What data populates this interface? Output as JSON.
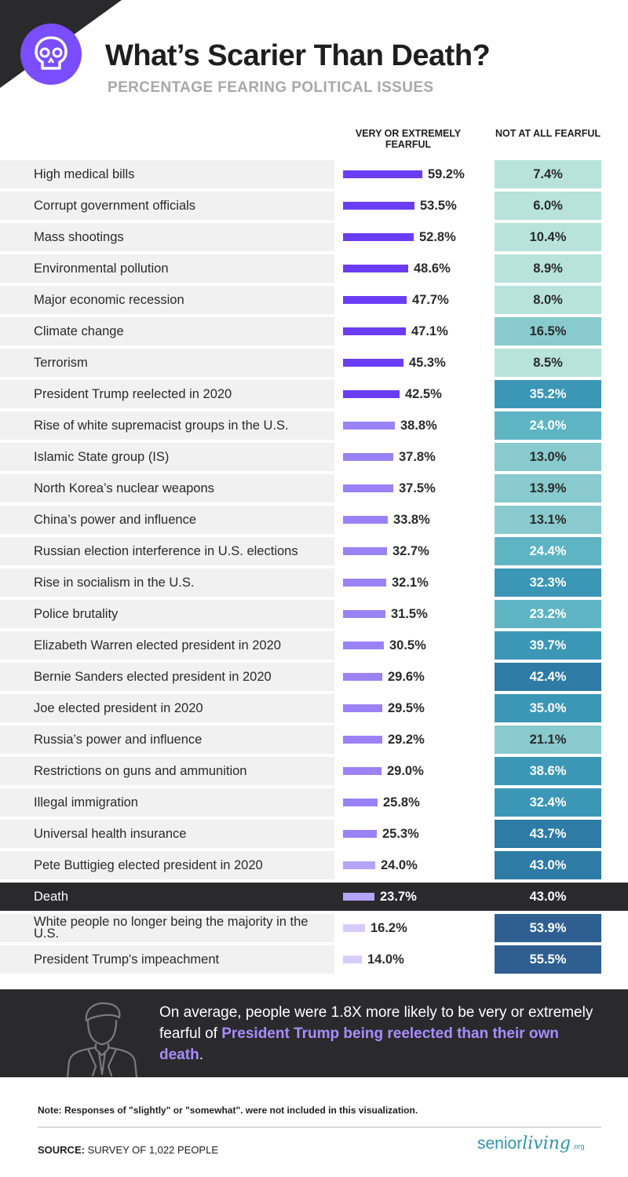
{
  "header": {
    "title": "What’s Scarier Than Death?",
    "subtitle": "PERCENTAGE FEARING POLITICAL ISSUES",
    "icon": "skull-icon",
    "accent_color": "#7a4dff"
  },
  "columns": {
    "fearful": "VERY OR EXTREMELY FEARFUL",
    "not_fearful": "NOT AT ALL FEARFUL"
  },
  "chart_data": {
    "type": "table",
    "columns": [
      "Issue",
      "VERY OR EXTREMELY FEARFUL",
      "NOT AT ALL FEARFUL"
    ],
    "bar_column": "VERY OR EXTREMELY FEARFUL",
    "highlight_row": "Death",
    "rows": [
      {
        "issue": "High medical bills",
        "fearful": 59.2,
        "fearful_label": "59.2%",
        "not_fearful": 7.4,
        "not_fearful_label": "7.4%"
      },
      {
        "issue": "Corrupt government officials",
        "fearful": 53.5,
        "fearful_label": "53.5%",
        "not_fearful": 6.0,
        "not_fearful_label": "6.0%"
      },
      {
        "issue": "Mass shootings",
        "fearful": 52.8,
        "fearful_label": "52.8%",
        "not_fearful": 10.4,
        "not_fearful_label": "10.4%"
      },
      {
        "issue": "Environmental pollution",
        "fearful": 48.6,
        "fearful_label": "48.6%",
        "not_fearful": 8.9,
        "not_fearful_label": "8.9%"
      },
      {
        "issue": "Major economic recession",
        "fearful": 47.7,
        "fearful_label": "47.7%",
        "not_fearful": 8.0,
        "not_fearful_label": "8.0%"
      },
      {
        "issue": "Climate change",
        "fearful": 47.1,
        "fearful_label": "47.1%",
        "not_fearful": 16.5,
        "not_fearful_label": "16.5%"
      },
      {
        "issue": "Terrorism",
        "fearful": 45.3,
        "fearful_label": "45.3%",
        "not_fearful": 8.5,
        "not_fearful_label": "8.5%"
      },
      {
        "issue": "President Trump reelected in 2020",
        "fearful": 42.5,
        "fearful_label": "42.5%",
        "not_fearful": 35.2,
        "not_fearful_label": "35.2%"
      },
      {
        "issue": "Rise of white supremacist groups in the U.S.",
        "fearful": 38.8,
        "fearful_label": "38.8%",
        "not_fearful": 24.0,
        "not_fearful_label": "24.0%"
      },
      {
        "issue": "Islamic State group (IS)",
        "fearful": 37.8,
        "fearful_label": "37.8%",
        "not_fearful": 13.0,
        "not_fearful_label": "13.0%"
      },
      {
        "issue": "North Korea’s nuclear weapons",
        "fearful": 37.5,
        "fearful_label": "37.5%",
        "not_fearful": 13.9,
        "not_fearful_label": "13.9%"
      },
      {
        "issue": "China’s power and influence",
        "fearful": 33.8,
        "fearful_label": "33.8%",
        "not_fearful": 13.1,
        "not_fearful_label": "13.1%"
      },
      {
        "issue": "Russian election interference in U.S. elections",
        "fearful": 32.7,
        "fearful_label": "32.7%",
        "not_fearful": 24.4,
        "not_fearful_label": "24.4%"
      },
      {
        "issue": "Rise in socialism in the U.S.",
        "fearful": 32.1,
        "fearful_label": "32.1%",
        "not_fearful": 32.3,
        "not_fearful_label": "32.3%"
      },
      {
        "issue": "Police brutality",
        "fearful": 31.5,
        "fearful_label": "31.5%",
        "not_fearful": 23.2,
        "not_fearful_label": "23.2%"
      },
      {
        "issue": "Elizabeth Warren elected president in 2020",
        "fearful": 30.5,
        "fearful_label": "30.5%",
        "not_fearful": 39.7,
        "not_fearful_label": "39.7%"
      },
      {
        "issue": "Bernie Sanders elected president in 2020",
        "fearful": 29.6,
        "fearful_label": "29.6%",
        "not_fearful": 42.4,
        "not_fearful_label": "42.4%"
      },
      {
        "issue": "Joe elected president in 2020",
        "fearful": 29.5,
        "fearful_label": "29.5%",
        "not_fearful": 35.0,
        "not_fearful_label": "35.0%"
      },
      {
        "issue": "Russia’s power and influence",
        "fearful": 29.2,
        "fearful_label": "29.2%",
        "not_fearful": 21.1,
        "not_fearful_label": "21.1%"
      },
      {
        "issue": "Restrictions on guns and ammunition",
        "fearful": 29.0,
        "fearful_label": "29.0%",
        "not_fearful": 38.6,
        "not_fearful_label": "38.6%"
      },
      {
        "issue": "Illegal immigration",
        "fearful": 25.8,
        "fearful_label": "25.8%",
        "not_fearful": 32.4,
        "not_fearful_label": "32.4%"
      },
      {
        "issue": "Universal health insurance",
        "fearful": 25.3,
        "fearful_label": "25.3%",
        "not_fearful": 43.7,
        "not_fearful_label": "43.7%"
      },
      {
        "issue": "Pete Buttigieg elected president in 2020",
        "fearful": 24.0,
        "fearful_label": "24.0%",
        "not_fearful": 43.0,
        "not_fearful_label": "43.0%"
      },
      {
        "issue": "Death",
        "fearful": 23.7,
        "fearful_label": "23.7%",
        "not_fearful": 43.0,
        "not_fearful_label": "43.0%"
      },
      {
        "issue": "White people no longer being the majority in the U.S.",
        "fearful": 16.2,
        "fearful_label": "16.2%",
        "not_fearful": 53.9,
        "not_fearful_label": "53.9%"
      },
      {
        "issue": "President Trump's impeachment",
        "fearful": 14.0,
        "fearful_label": "14.0%",
        "not_fearful": 55.5,
        "not_fearful_label": "55.5%"
      }
    ],
    "colors": {
      "bar_dark": "#6a3df5",
      "bar_mid": "#9a82f6",
      "bar_light": "#b5a3f8",
      "bar_lightest": "#d7cdfb",
      "cell_scale": [
        "#b7e3dc",
        "#88cacd",
        "#5fb4c4",
        "#3c97b6",
        "#2e7ba5",
        "#2f5f90"
      ]
    }
  },
  "callout": {
    "icon": "businessman-icon",
    "text": "On average, people were 1.8X more likely to be very or extremely fearful of ",
    "highlight": "President Trump being reelected than their own death",
    "end": "."
  },
  "note": "Note: Responses of \"slightly\" or \"somewhat\". were not included in this visualization.",
  "source": {
    "label": "SOURCE:",
    "text": " SURVEY OF 1,022 PEOPLE"
  },
  "brand": {
    "part1": "senior",
    "part2": "living",
    "part3": ".org"
  }
}
